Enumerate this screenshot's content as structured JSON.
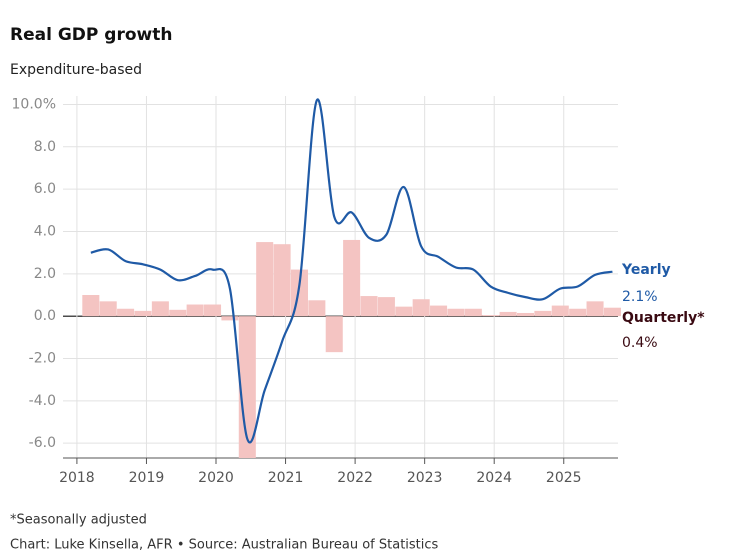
{
  "chart_data": {
    "type": "combo",
    "title": "Real GDP growth",
    "subtitle": "Expenditure-based",
    "footnote": "*Seasonally adjusted",
    "source": "Chart: Luke Kinsella, AFR • Source: Australian Bureau of Statistics",
    "x": [
      2018.2,
      2018.45,
      2018.7,
      2018.95,
      2019.2,
      2019.45,
      2019.7,
      2019.95,
      2020.2,
      2020.45,
      2020.7,
      2020.95,
      2021.2,
      2021.45,
      2021.7,
      2021.95,
      2022.2,
      2022.45,
      2022.7,
      2022.95,
      2023.2,
      2023.45,
      2023.7,
      2023.95,
      2024.2,
      2024.45,
      2024.7,
      2024.95,
      2025.2,
      2025.45,
      2025.7
    ],
    "series": [
      {
        "name": "Quarterly*",
        "type": "bar",
        "color": "#f4c4c2",
        "label_color": "#3a0a12",
        "values": [
          1.0,
          0.7,
          0.35,
          0.25,
          0.7,
          0.3,
          0.55,
          0.55,
          -0.2,
          -6.7,
          3.5,
          3.4,
          2.2,
          0.75,
          -1.7,
          3.6,
          0.95,
          0.9,
          0.45,
          0.8,
          0.5,
          0.35,
          0.35,
          0.05,
          0.2,
          0.15,
          0.25,
          0.5,
          0.35,
          0.7,
          0.4
        ],
        "value_labels": [
          null,
          null,
          null,
          null,
          null,
          null,
          null,
          null,
          null,
          null,
          null,
          null,
          null,
          null,
          null,
          null,
          null,
          null,
          null,
          null,
          null,
          null,
          null,
          null,
          null,
          null,
          null,
          null,
          null,
          null,
          "0.4%"
        ]
      },
      {
        "name": "Yearly",
        "type": "line",
        "color": "#1f5aa6",
        "label_color": "#1f5aa6",
        "values": [
          3.0,
          3.15,
          2.6,
          2.45,
          2.2,
          1.7,
          1.9,
          2.2,
          1.3,
          -5.8,
          -3.5,
          -1.2,
          1.5,
          10.2,
          4.7,
          4.9,
          3.7,
          3.85,
          6.1,
          3.3,
          2.8,
          2.3,
          2.2,
          1.4,
          1.1,
          0.9,
          0.8,
          1.3,
          1.4,
          1.95,
          2.1
        ],
        "value_labels": [
          null,
          null,
          null,
          null,
          null,
          null,
          null,
          null,
          null,
          null,
          null,
          null,
          null,
          null,
          null,
          null,
          null,
          null,
          null,
          null,
          null,
          null,
          null,
          null,
          null,
          null,
          null,
          null,
          null,
          null,
          "2.1%"
        ]
      }
    ],
    "xlim": [
      2017.8,
      2025.78
    ],
    "xticks": [
      2018,
      2019,
      2020,
      2021,
      2022,
      2023,
      2024,
      2025
    ],
    "ylim": [
      -6.7,
      10.4
    ],
    "yticks": [
      {
        "value": 10,
        "label": "10.0%"
      },
      {
        "value": 8,
        "label": "8.0"
      },
      {
        "value": 6,
        "label": "6.0"
      },
      {
        "value": 4,
        "label": "4.0"
      },
      {
        "value": 2,
        "label": "2.0"
      },
      {
        "value": 0,
        "label": "0.0"
      },
      {
        "value": -2,
        "label": "-2.0"
      },
      {
        "value": -4,
        "label": "-4.0"
      },
      {
        "value": -6,
        "label": "-6.0"
      }
    ],
    "grid": true
  }
}
